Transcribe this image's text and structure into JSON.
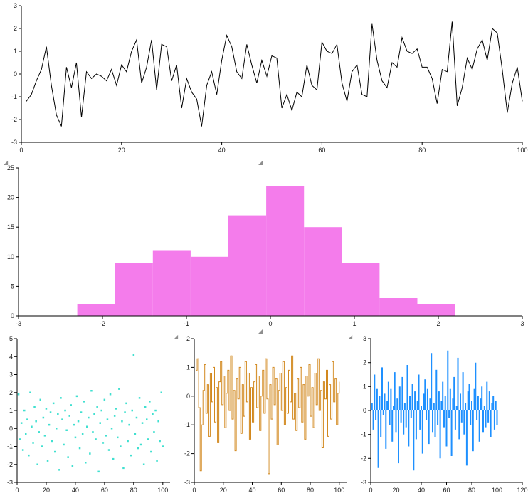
{
  "window": {
    "background": "#ffffff"
  },
  "icons": {
    "splitter_grip": "◢"
  },
  "chart_data": [
    {
      "id": "line",
      "type": "line",
      "title": "",
      "xlabel": "",
      "ylabel": "",
      "color": "#000000",
      "xlim": [
        0,
        100
      ],
      "ylim": [
        -3,
        3
      ],
      "xticks": [
        0,
        20,
        40,
        60,
        80,
        100
      ],
      "yticks": [
        -3,
        -2,
        -1,
        0,
        1,
        2,
        3
      ],
      "grid": false,
      "legend": "none",
      "x_from": 1,
      "x_to": 100,
      "values": [
        -1.2,
        -0.9,
        -0.3,
        0.2,
        1.2,
        -0.5,
        -1.8,
        -2.3,
        0.3,
        -0.6,
        0.5,
        -1.9,
        0.1,
        -0.2,
        0.0,
        -0.1,
        -0.3,
        0.2,
        -0.5,
        0.4,
        0.1,
        1.0,
        1.5,
        -0.4,
        0.3,
        1.5,
        -0.7,
        1.3,
        1.2,
        -0.3,
        0.4,
        -1.5,
        -0.2,
        -0.8,
        -1.1,
        -2.3,
        -0.5,
        0.1,
        -0.9,
        0.6,
        1.7,
        1.2,
        0.1,
        -0.2,
        1.3,
        0.4,
        -0.4,
        0.6,
        -0.1,
        0.8,
        0.7,
        -1.5,
        -0.9,
        -1.6,
        -0.8,
        -1.0,
        0.4,
        -0.5,
        -0.7,
        1.4,
        1.0,
        0.9,
        1.3,
        -0.4,
        -1.2,
        0.1,
        0.4,
        -0.9,
        -1.0,
        2.2,
        0.6,
        -0.3,
        -0.6,
        0.5,
        0.3,
        1.6,
        1.0,
        0.9,
        1.1,
        0.3,
        0.3,
        -0.2,
        -1.3,
        0.2,
        0.1,
        2.3,
        -1.4,
        -0.6,
        0.7,
        0.2,
        1.1,
        1.5,
        0.6,
        2.0,
        1.8,
        0.2,
        -1.7,
        -0.4,
        0.3,
        -1.2
      ]
    },
    {
      "id": "hist",
      "type": "histogram",
      "title": "",
      "xlabel": "",
      "ylabel": "",
      "color": "#f47ceb",
      "xlim": [
        -3,
        3
      ],
      "ylim": [
        0,
        25
      ],
      "xticks": [
        -3,
        -2,
        -1,
        0,
        1,
        2,
        3
      ],
      "yticks": [
        0,
        5,
        10,
        15,
        20,
        25
      ],
      "grid": false,
      "legend": "none",
      "bin_edges": [
        -2.3,
        -1.85,
        -1.4,
        -0.95,
        -0.5,
        -0.05,
        0.4,
        0.85,
        1.3,
        1.75,
        2.2
      ],
      "counts": [
        2,
        9,
        11,
        10,
        17,
        22,
        15,
        9,
        3,
        2
      ]
    },
    {
      "id": "scatter",
      "type": "scatter",
      "title": "",
      "xlabel": "",
      "ylabel": "",
      "color": "#40e0d0",
      "xlim": [
        0,
        105
      ],
      "ylim": [
        -3,
        5
      ],
      "xticks": [
        0,
        20,
        40,
        60,
        80,
        100
      ],
      "yticks": [
        -3,
        -2,
        -1,
        0,
        1,
        2,
        3,
        4,
        5
      ],
      "grid": false,
      "legend": "none",
      "x_from": 1,
      "x_to": 100,
      "values": [
        1.9,
        -0.6,
        0.3,
        -1.2,
        1.0,
        -0.3,
        0.5,
        -1.5,
        2.0,
        0.1,
        -0.8,
        1.2,
        0.4,
        -2.0,
        -0.2,
        1.6,
        -1.0,
        0.6,
        -0.4,
        1.1,
        -1.8,
        0.2,
        0.9,
        -0.7,
        1.4,
        -1.3,
        0.0,
        0.8,
        -2.3,
        1.7,
        0.5,
        -0.9,
        1.0,
        -0.1,
        -1.6,
        0.7,
        1.3,
        -2.1,
        0.2,
        -0.5,
        1.8,
        0.4,
        -1.1,
        0.9,
        -0.3,
        1.5,
        -1.9,
        0.1,
        0.6,
        -1.4,
        2.1,
        -0.2,
        0.8,
        -0.6,
        1.2,
        -2.4,
        0.3,
        1.0,
        -0.8,
        1.6,
        -0.4,
        0.5,
        -1.2,
        1.9,
        0.0,
        -1.7,
        0.7,
        1.1,
        -0.5,
        2.2,
        -1.0,
        0.4,
        -2.2,
        0.9,
        1.4,
        -0.7,
        0.2,
        -1.5,
        1.0,
        4.1,
        -0.3,
        0.6,
        -1.1,
        1.7,
        -0.9,
        0.3,
        -2.0,
        1.2,
        0.5,
        -0.6,
        1.5,
        -1.3,
        0.8,
        -0.2,
        1.0,
        -1.8,
        0.4,
        -0.7,
        2.0,
        -1.0
      ]
    },
    {
      "id": "stairs",
      "type": "stairs",
      "title": "",
      "xlabel": "",
      "ylabel": "",
      "color": "#d2881e",
      "xlim": [
        0,
        105
      ],
      "ylim": [
        -3,
        2
      ],
      "xticks": [
        0,
        20,
        40,
        60,
        80,
        100
      ],
      "yticks": [
        -3,
        -2,
        -1,
        0,
        1,
        2
      ],
      "grid": false,
      "legend": "none",
      "x_from": 1,
      "x_to": 100,
      "values": [
        0.9,
        1.3,
        -0.4,
        -2.6,
        -1.0,
        0.2,
        1.1,
        -0.6,
        0.4,
        -1.4,
        0.8,
        -0.2,
        1.0,
        -0.9,
        0.3,
        -1.6,
        0.5,
        1.2,
        -0.3,
        0.7,
        -1.1,
        0.1,
        0.9,
        -0.5,
        1.4,
        -0.8,
        0.2,
        -1.9,
        0.6,
        -0.1,
        1.0,
        -1.3,
        0.4,
        -0.7,
        1.2,
        -0.2,
        0.8,
        -1.5,
        0.3,
        -0.9,
        0.5,
        1.1,
        -0.4,
        0.7,
        -1.2,
        0.0,
        0.9,
        -0.6,
        1.3,
        -0.1,
        -2.7,
        0.4,
        -0.8,
        1.0,
        -0.3,
        0.6,
        -1.7,
        0.2,
        0.8,
        -0.5,
        1.2,
        -1.0,
        0.3,
        -0.6,
        0.9,
        -0.2,
        1.4,
        -0.8,
        0.1,
        -1.2,
        0.6,
        -0.4,
        1.0,
        -0.9,
        0.4,
        -1.5,
        0.7,
        0.0,
        1.1,
        -0.7,
        0.3,
        -1.1,
        0.8,
        -0.3,
        1.3,
        -0.5,
        0.2,
        -1.8,
        0.5,
        -0.1,
        0.9,
        -1.4,
        0.4,
        -0.8,
        1.2,
        -0.2,
        0.6,
        -1.0,
        0.1,
        0.5
      ]
    },
    {
      "id": "stem",
      "type": "stem",
      "title": "",
      "xlabel": "",
      "ylabel": "",
      "color": "#1e90ff",
      "baseline": 0,
      "xlim": [
        0,
        120
      ],
      "ylim": [
        -3,
        3
      ],
      "xticks": [
        0,
        20,
        40,
        60,
        80,
        100,
        120
      ],
      "yticks": [
        -3,
        -2,
        -1,
        0,
        1,
        2,
        3
      ],
      "grid": false,
      "legend": "none",
      "x_from": 1,
      "x_to": 100,
      "values": [
        0.3,
        -0.8,
        1.5,
        -0.4,
        0.9,
        -2.4,
        0.6,
        -1.1,
        1.8,
        -0.2,
        0.7,
        -1.6,
        0.4,
        1.2,
        -0.6,
        0.9,
        -1.3,
        0.2,
        1.6,
        -0.9,
        0.5,
        -2.2,
        1.0,
        -0.5,
        1.4,
        -1.0,
        0.3,
        -0.7,
        1.9,
        -1.5,
        0.6,
        -0.3,
        1.1,
        -2.5,
        0.8,
        -1.2,
        0.4,
        1.5,
        -0.8,
        0.2,
        -1.8,
        0.7,
        1.3,
        -0.4,
        0.9,
        -1.4,
        0.5,
        2.4,
        -0.9,
        0.3,
        -1.1,
        1.7,
        -0.6,
        0.8,
        -2.0,
        0.4,
        1.2,
        -0.7,
        0.6,
        -1.5,
        2.5,
        -0.3,
        0.9,
        -1.9,
        0.5,
        1.4,
        -0.8,
        0.2,
        2.2,
        -1.2,
        0.7,
        -0.5,
        1.6,
        -1.0,
        0.3,
        -2.3,
        0.8,
        1.1,
        -0.6,
        0.4,
        -1.7,
        0.9,
        2.0,
        -0.4,
        0.6,
        -1.3,
        0.5,
        1.0,
        -0.9,
        0.2,
        -0.7,
        1.2,
        -0.5,
        0.8,
        -1.1,
        0.3,
        0.6,
        -0.8,
        0.4,
        -0.6
      ]
    }
  ]
}
